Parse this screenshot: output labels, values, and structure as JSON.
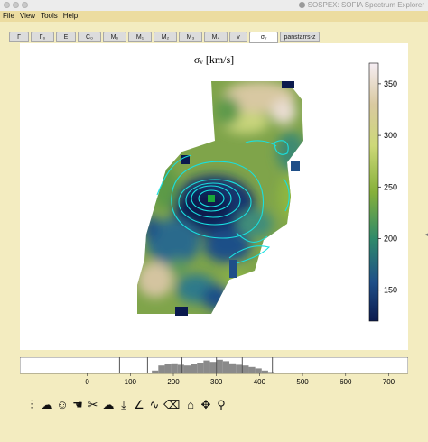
{
  "window": {
    "title": "SOSPEX: SOFIA Spectrum Explorer",
    "logo_icon": "sospex-logo-icon"
  },
  "menu": [
    "File",
    "View",
    "Tools",
    "Help"
  ],
  "tabs": [
    {
      "label": "Γ"
    },
    {
      "label": "Γ₀"
    },
    {
      "label": "E"
    },
    {
      "label": "C₀"
    },
    {
      "label": "M₀"
    },
    {
      "label": "M₁"
    },
    {
      "label": "M₂"
    },
    {
      "label": "M₃"
    },
    {
      "label": "M₄"
    },
    {
      "label": "v"
    },
    {
      "label": "σᵥ",
      "active": true
    },
    {
      "label": "panstarrs-z"
    }
  ],
  "map": {
    "title": "σᵥ [km/s]",
    "colorbar": {
      "min": 120,
      "max": 370,
      "ticks": [
        150,
        200,
        250,
        300,
        350
      ],
      "colors": [
        "#0b1a4e",
        "#1f5a8c",
        "#2f8a6a",
        "#86b03a",
        "#cdd878",
        "#d9c9a0",
        "#f6eef4"
      ]
    },
    "contour_color": "#19e0e0",
    "marker_color": "#1aa83a"
  },
  "histogram": {
    "x_min": -60,
    "x_max": 720,
    "ticks": [
      0,
      100,
      200,
      300,
      400,
      500,
      600,
      700
    ],
    "bins_x": [
      150,
      165,
      180,
      195,
      210,
      225,
      240,
      255,
      270,
      285,
      300,
      315,
      330,
      345,
      360,
      375,
      390,
      405,
      420
    ],
    "bins_y": [
      0.2,
      0.55,
      0.65,
      0.7,
      0.6,
      0.55,
      0.65,
      0.75,
      0.9,
      0.8,
      0.95,
      0.85,
      0.7,
      0.6,
      0.55,
      0.45,
      0.35,
      0.2,
      0.1
    ],
    "markers": [
      75,
      140,
      220,
      300,
      360,
      430
    ]
  },
  "toolbar": [
    {
      "name": "sliders-icon",
      "glyph": "⫶"
    },
    {
      "name": "cloud-add-icon",
      "glyph": "☁"
    },
    {
      "name": "smiley-icon",
      "glyph": "☺"
    },
    {
      "name": "hand-icon",
      "glyph": "☚"
    },
    {
      "name": "cut-icon",
      "glyph": "✂"
    },
    {
      "name": "cloud-icon",
      "glyph": "☁"
    },
    {
      "name": "download-icon",
      "glyph": "⤓"
    },
    {
      "name": "fit-icon",
      "glyph": "∠"
    },
    {
      "name": "wave-icon",
      "glyph": "∿"
    },
    {
      "name": "eraser-icon",
      "glyph": "⌫"
    },
    {
      "name": "home-icon",
      "glyph": "⌂"
    },
    {
      "name": "move-icon",
      "glyph": "✥"
    },
    {
      "name": "zoom-icon",
      "glyph": "⚲"
    }
  ]
}
